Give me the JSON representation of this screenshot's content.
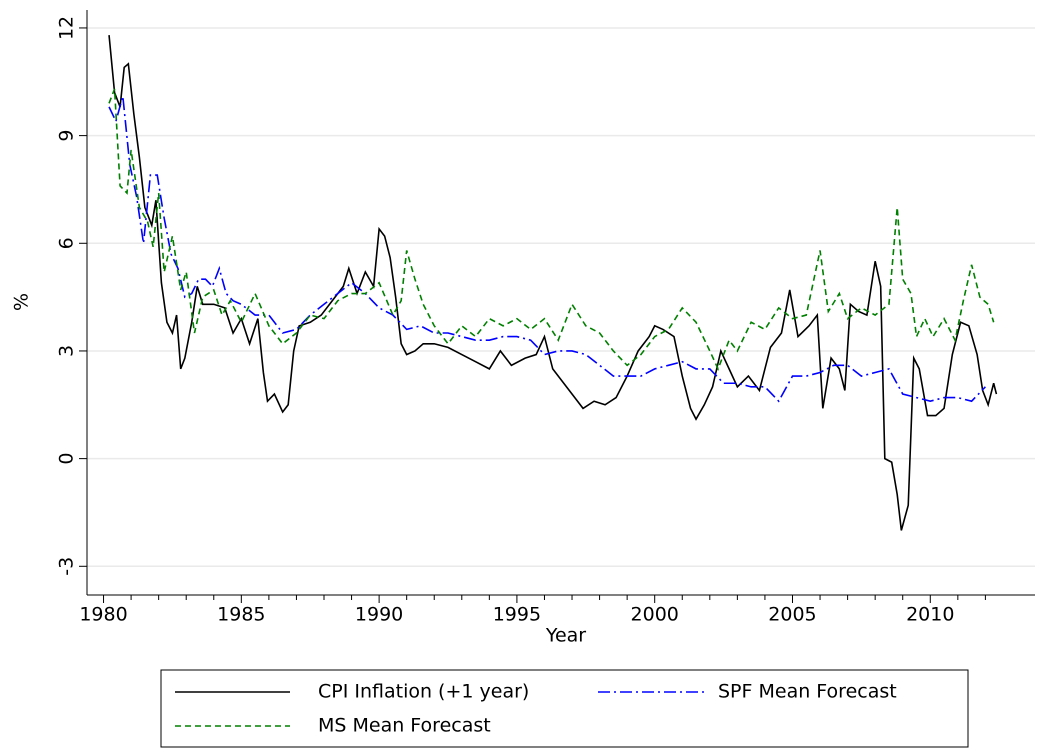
{
  "chart_data": {
    "type": "line",
    "x_label": "Year",
    "y_label": "%",
    "xlim": [
      1979.4,
      2013.8
    ],
    "ylim": [
      -3.8,
      12.5
    ],
    "xticks": [
      1980,
      1985,
      1990,
      1995,
      2000,
      2005,
      2010
    ],
    "xminorticks": [
      1981,
      1982,
      1983,
      1984,
      1986,
      1987,
      1988,
      1989,
      1991,
      1992,
      1993,
      1994,
      1996,
      1997,
      1998,
      1999,
      2001,
      2002,
      2003,
      2004,
      2006,
      2007,
      2008,
      2009,
      2011,
      2012
    ],
    "yticks": [
      -3,
      0,
      3,
      6,
      9,
      12
    ],
    "grid": true,
    "series": [
      {
        "name": "CPI Inflation (+1 year)",
        "color": "#000000",
        "dash": "solid",
        "x": [
          1980.2,
          1980.4,
          1980.6,
          1980.75,
          1980.9,
          1981.1,
          1981.3,
          1981.5,
          1981.75,
          1981.9,
          1982.1,
          1982.3,
          1982.5,
          1982.65,
          1982.8,
          1982.95,
          1983.2,
          1983.4,
          1983.6,
          1984.0,
          1984.4,
          1984.7,
          1985.0,
          1985.3,
          1985.6,
          1985.8,
          1985.95,
          1986.2,
          1986.5,
          1986.7,
          1986.9,
          1987.1,
          1987.5,
          1987.9,
          1988.3,
          1988.7,
          1988.9,
          1989.2,
          1989.5,
          1989.8,
          1990.0,
          1990.2,
          1990.4,
          1990.6,
          1990.8,
          1991.0,
          1991.3,
          1991.6,
          1992.0,
          1992.5,
          1993.0,
          1993.5,
          1994.0,
          1994.4,
          1994.8,
          1995.3,
          1995.7,
          1996.0,
          1996.3,
          1996.7,
          1997.1,
          1997.4,
          1997.8,
          1998.2,
          1998.6,
          1999.0,
          1999.4,
          1999.8,
          2000.0,
          2000.3,
          2000.7,
          2001.0,
          2001.3,
          2001.5,
          2001.8,
          2002.1,
          2002.4,
          2002.7,
          2003.0,
          2003.4,
          2003.8,
          2004.2,
          2004.6,
          2004.9,
          2005.2,
          2005.6,
          2005.9,
          2006.1,
          2006.4,
          2006.7,
          2006.9,
          2007.1,
          2007.4,
          2007.7,
          2008.0,
          2008.2,
          2008.35,
          2008.6,
          2008.8,
          2008.95,
          2009.2,
          2009.4,
          2009.6,
          2009.9,
          2010.2,
          2010.5,
          2010.8,
          2011.1,
          2011.4,
          2011.7,
          2011.9,
          2012.1,
          2012.3,
          2012.4
        ],
        "values": [
          11.8,
          10.2,
          9.8,
          10.9,
          11.0,
          9.6,
          8.4,
          7.0,
          6.5,
          7.2,
          4.9,
          3.8,
          3.5,
          4.0,
          2.5,
          2.8,
          3.8,
          4.8,
          4.3,
          4.3,
          4.2,
          3.5,
          3.9,
          3.2,
          3.9,
          2.4,
          1.6,
          1.8,
          1.3,
          1.5,
          3.0,
          3.7,
          3.8,
          4.0,
          4.4,
          4.8,
          5.3,
          4.6,
          5.2,
          4.8,
          6.4,
          6.2,
          5.6,
          4.5,
          3.2,
          2.9,
          3.0,
          3.2,
          3.2,
          3.1,
          2.9,
          2.7,
          2.5,
          3.0,
          2.6,
          2.8,
          2.9,
          3.4,
          2.5,
          2.1,
          1.7,
          1.4,
          1.6,
          1.5,
          1.7,
          2.3,
          3.0,
          3.4,
          3.7,
          3.6,
          3.4,
          2.3,
          1.4,
          1.1,
          1.5,
          2.0,
          3.0,
          2.5,
          2.0,
          2.3,
          1.9,
          3.1,
          3.5,
          4.7,
          3.4,
          3.7,
          4.0,
          1.4,
          2.8,
          2.5,
          1.9,
          4.3,
          4.1,
          4.0,
          5.5,
          4.8,
          0.0,
          -0.1,
          -1.0,
          -2.0,
          -1.3,
          2.8,
          2.5,
          1.2,
          1.2,
          1.4,
          2.9,
          3.8,
          3.7,
          2.9,
          1.9,
          1.5,
          2.1,
          1.8
        ]
      },
      {
        "name": "SPF Mean Forecast",
        "color": "#0000ff",
        "dash": "dashdot",
        "x": [
          1980.2,
          1980.45,
          1980.7,
          1980.95,
          1981.2,
          1981.45,
          1981.7,
          1981.95,
          1982.2,
          1982.45,
          1982.7,
          1982.95,
          1983.2,
          1983.45,
          1983.7,
          1983.95,
          1984.2,
          1984.45,
          1984.7,
          1985.0,
          1985.5,
          1986.0,
          1986.5,
          1987.0,
          1987.5,
          1988.0,
          1988.5,
          1989.0,
          1989.5,
          1990.0,
          1990.5,
          1991.0,
          1991.5,
          1992.0,
          1992.5,
          1993.0,
          1993.5,
          1994.0,
          1994.5,
          1995.0,
          1995.5,
          1996.0,
          1996.5,
          1997.0,
          1997.5,
          1998.0,
          1998.5,
          1999.0,
          1999.5,
          2000.0,
          2000.5,
          2001.0,
          2001.5,
          2002.0,
          2002.5,
          2003.0,
          2003.5,
          2004.0,
          2004.5,
          2005.0,
          2005.5,
          2006.0,
          2006.5,
          2007.0,
          2007.5,
          2008.0,
          2008.5,
          2009.0,
          2009.5,
          2010.0,
          2010.5,
          2011.0,
          2011.5,
          2012.0
        ],
        "values": [
          9.8,
          9.4,
          10.1,
          8.2,
          7.3,
          6.0,
          7.9,
          7.9,
          6.7,
          5.7,
          5.3,
          4.5,
          4.6,
          5.0,
          5.0,
          4.8,
          5.3,
          4.6,
          4.4,
          4.3,
          4.0,
          4.0,
          3.5,
          3.6,
          4.0,
          4.3,
          4.6,
          4.9,
          4.6,
          4.2,
          4.0,
          3.6,
          3.7,
          3.5,
          3.5,
          3.4,
          3.3,
          3.3,
          3.4,
          3.4,
          3.3,
          2.9,
          3.0,
          3.0,
          2.9,
          2.6,
          2.3,
          2.3,
          2.3,
          2.5,
          2.6,
          2.7,
          2.5,
          2.5,
          2.1,
          2.1,
          2.0,
          2.0,
          1.6,
          2.3,
          2.3,
          2.4,
          2.6,
          2.6,
          2.3,
          2.4,
          2.5,
          1.8,
          1.7,
          1.6,
          1.7,
          1.7,
          1.6,
          2.0
        ]
      },
      {
        "name": "MS Mean Forecast",
        "color": "#008000",
        "dash": "dash",
        "x": [
          1980.2,
          1980.4,
          1980.6,
          1980.85,
          1981.0,
          1981.3,
          1981.6,
          1981.8,
          1982.0,
          1982.2,
          1982.5,
          1982.8,
          1983.0,
          1983.3,
          1983.6,
          1984.0,
          1984.3,
          1984.6,
          1985.0,
          1985.5,
          1986.0,
          1986.5,
          1987.0,
          1987.5,
          1988.0,
          1988.5,
          1989.0,
          1989.5,
          1990.0,
          1990.5,
          1990.8,
          1991.0,
          1991.3,
          1991.6,
          1992.0,
          1992.5,
          1993.0,
          1993.5,
          1994.0,
          1994.5,
          1995.0,
          1995.5,
          1996.0,
          1996.5,
          1997.0,
          1997.5,
          1998.0,
          1998.5,
          1999.0,
          1999.5,
          2000.0,
          2000.5,
          2001.0,
          2001.5,
          2002.0,
          2002.3,
          2002.7,
          2003.0,
          2003.5,
          2004.0,
          2004.5,
          2005.0,
          2005.5,
          2006.0,
          2006.3,
          2006.7,
          2007.0,
          2007.5,
          2008.0,
          2008.5,
          2008.8,
          2009.0,
          2009.3,
          2009.5,
          2009.8,
          2010.1,
          2010.5,
          2010.9,
          2011.2,
          2011.5,
          2011.8,
          2012.1,
          2012.3
        ],
        "values": [
          9.9,
          10.3,
          7.6,
          7.4,
          8.6,
          7.0,
          6.6,
          5.9,
          7.4,
          5.2,
          6.2,
          4.7,
          5.2,
          3.5,
          4.5,
          4.7,
          4.0,
          4.4,
          3.8,
          4.6,
          3.7,
          3.2,
          3.5,
          4.0,
          3.9,
          4.4,
          4.6,
          4.6,
          4.9,
          4.0,
          4.4,
          5.8,
          5.0,
          4.3,
          3.7,
          3.2,
          3.7,
          3.4,
          3.9,
          3.7,
          3.9,
          3.6,
          3.9,
          3.3,
          4.3,
          3.7,
          3.5,
          3.0,
          2.6,
          2.9,
          3.4,
          3.6,
          4.2,
          3.8,
          3.0,
          2.5,
          3.3,
          3.0,
          3.8,
          3.6,
          4.2,
          3.9,
          4.0,
          5.8,
          4.1,
          4.6,
          3.9,
          4.2,
          4.0,
          4.3,
          7.0,
          5.0,
          4.6,
          3.4,
          3.9,
          3.4,
          3.9,
          3.3,
          4.4,
          5.4,
          4.5,
          4.3,
          3.8
        ]
      }
    ]
  }
}
